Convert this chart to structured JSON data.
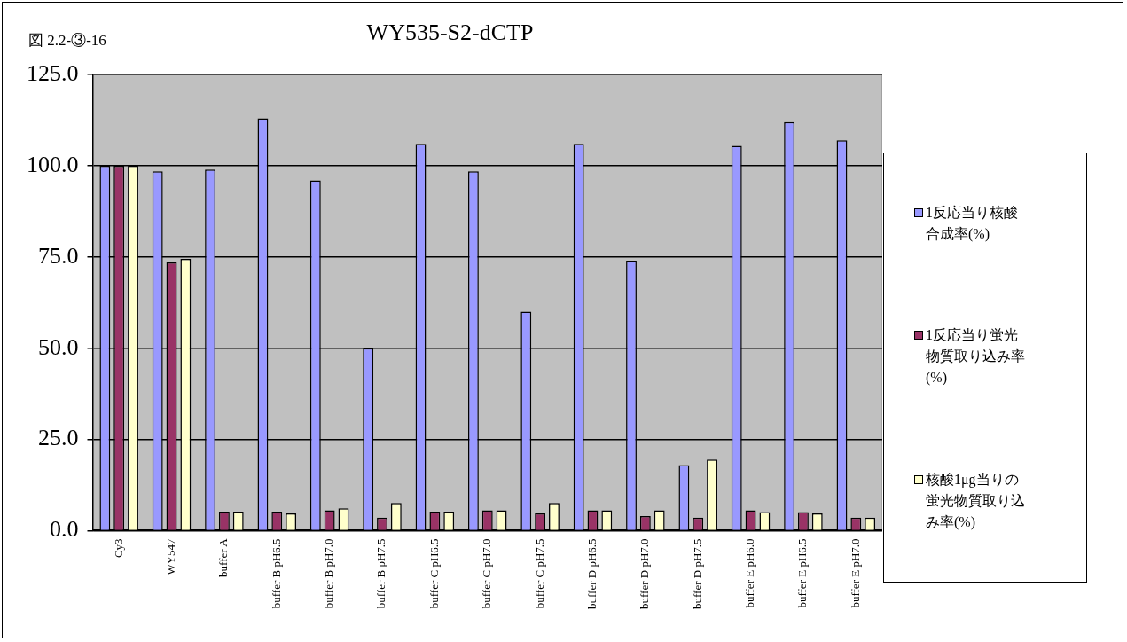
{
  "chart_data": {
    "type": "bar",
    "title": "WY535-S2-dCTP",
    "annotations": [
      "図 2.2-③-16"
    ],
    "categories": [
      "Cy3",
      "WY547",
      "buffer A",
      "buffer B pH6.5",
      "buffer B pH7.0",
      "buffer B pH7.5",
      "buffer C pH6.5",
      "buffer C pH7.0",
      "buffer C pH7.5",
      "buffer D pH6.5",
      "buffer D pH7.0",
      "buffer D pH7.5",
      "buffer E pH6.0",
      "buffer E pH6.5",
      "buffer E pH7.0"
    ],
    "series": [
      {
        "name": "1反応当り核酸合成率(%)",
        "color": "#9999ff",
        "values": [
          100,
          98.5,
          99,
          113,
          96,
          50,
          106,
          98.5,
          60,
          106,
          74,
          18,
          105.5,
          112,
          107
        ]
      },
      {
        "name": "1反応当り蛍光物質取り込み率(%)",
        "color": "#993366",
        "values": [
          100,
          73.5,
          5.2,
          5.2,
          5.6,
          3.6,
          5.2,
          5.6,
          4.7,
          5.6,
          4,
          3.6,
          5.6,
          5.1,
          3.6
        ]
      },
      {
        "name": "核酸1μg当りの蛍光物質取り込み率(%)",
        "color": "#ffffcc",
        "values": [
          100,
          74.5,
          5.2,
          4.7,
          6.1,
          7.6,
          5.2,
          5.6,
          7.6,
          5.6,
          5.6,
          19.5,
          5.1,
          4.7,
          3.6
        ]
      }
    ],
    "ylim": [
      0,
      125
    ],
    "yticks": [
      {
        "value": 0,
        "label": "0.0"
      },
      {
        "value": 25,
        "label": "25.0"
      },
      {
        "value": 50,
        "label": "50.0"
      },
      {
        "value": 75,
        "label": "75.0"
      },
      {
        "value": 100,
        "label": "100.0"
      },
      {
        "value": 125,
        "label": "125.0"
      }
    ],
    "grid": "y",
    "legend": "right"
  }
}
